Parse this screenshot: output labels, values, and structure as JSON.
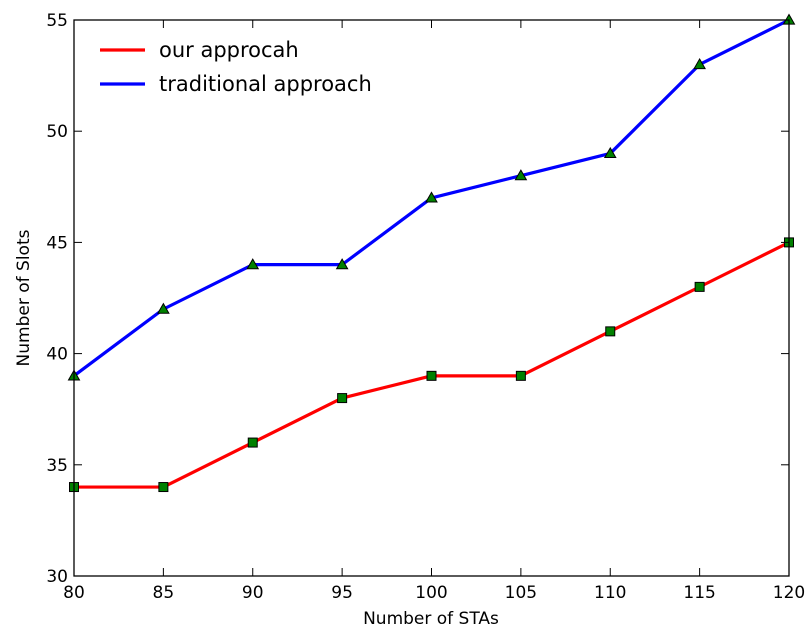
{
  "chart_data": {
    "type": "line",
    "title": "",
    "xlabel": "Number of STAs",
    "ylabel": "Number of Slots",
    "x": [
      80,
      85,
      90,
      95,
      100,
      105,
      110,
      115,
      120
    ],
    "xlim": [
      80,
      120
    ],
    "ylim": [
      30,
      55
    ],
    "x_ticks": [
      "80",
      "85",
      "90",
      "95",
      "100",
      "105",
      "110",
      "115",
      "120"
    ],
    "y_ticks": [
      "30",
      "35",
      "40",
      "45",
      "50",
      "55"
    ],
    "grid": false,
    "legend_position": "top-left",
    "series": [
      {
        "name": "our approcah",
        "values": [
          34,
          34,
          36,
          38,
          39,
          39,
          41,
          43,
          45
        ],
        "line_color": "#ff0000",
        "marker": "square",
        "marker_color": "#008000"
      },
      {
        "name": "traditional approach",
        "values": [
          39,
          42,
          44,
          44,
          47,
          48,
          49,
          53,
          55
        ],
        "line_color": "#0000ff",
        "marker": "triangle",
        "marker_color": "#008000"
      }
    ]
  }
}
